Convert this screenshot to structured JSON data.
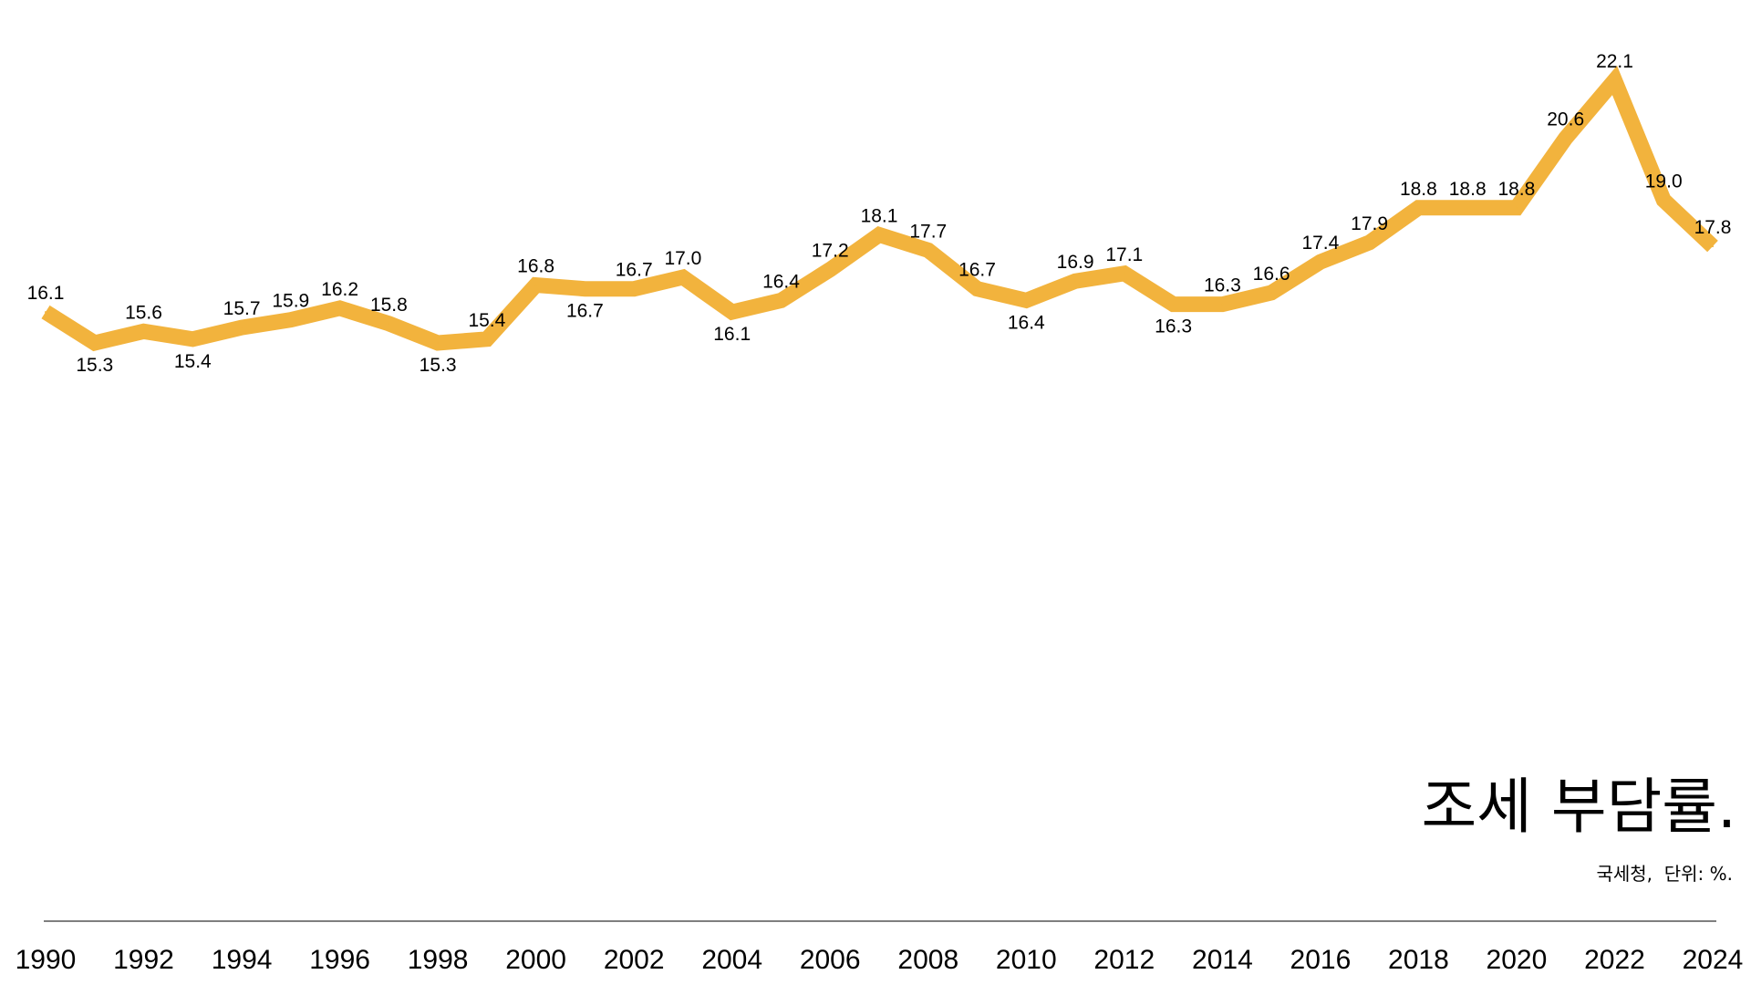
{
  "chart_data": {
    "type": "line",
    "title": "조세 부담률.",
    "subtitle": "국세청,  단위: %.",
    "x": [
      1990,
      1991,
      1992,
      1993,
      1994,
      1995,
      1996,
      1997,
      1998,
      1999,
      2000,
      2001,
      2002,
      2003,
      2004,
      2005,
      2006,
      2007,
      2008,
      2009,
      2010,
      2011,
      2012,
      2013,
      2014,
      2015,
      2016,
      2017,
      2018,
      2019,
      2020,
      2021,
      2022,
      2023,
      2024
    ],
    "values": [
      16.1,
      15.3,
      15.6,
      15.4,
      15.7,
      15.9,
      16.2,
      15.8,
      15.3,
      15.4,
      16.8,
      16.7,
      16.7,
      17.0,
      16.1,
      16.4,
      17.2,
      18.1,
      17.7,
      16.7,
      16.4,
      16.9,
      17.1,
      16.3,
      16.3,
      16.6,
      17.4,
      17.9,
      18.8,
      18.8,
      18.8,
      20.6,
      22.1,
      19.0,
      17.8
    ],
    "labels": [
      "16.1",
      "15.3",
      "15.6",
      "15.4",
      "15.7",
      "15.9",
      "16.2",
      "15.8",
      "15.3",
      "15.4",
      "16.8",
      "16.7",
      "16.7",
      "17.0",
      "16.1",
      "16.4",
      "17.2",
      "18.1",
      "17.7",
      "16.7",
      "16.4",
      "16.9",
      "17.1",
      "16.3",
      "16.3",
      "16.6",
      "17.4",
      "17.9",
      "18.8",
      "18.8",
      "18.8",
      "20.6",
      "22.1",
      "19.0",
      "17.8"
    ],
    "x_ticks": [
      "1990",
      "1992",
      "1994",
      "1996",
      "1998",
      "2000",
      "2002",
      "2004",
      "2006",
      "2008",
      "2010",
      "2012",
      "2014",
      "2016",
      "2018",
      "2020",
      "2022",
      "2024"
    ],
    "series_color": "#F2B33D",
    "axis_color": "#555555",
    "grid": false,
    "legend": false,
    "xlim": [
      1990,
      2024
    ]
  }
}
